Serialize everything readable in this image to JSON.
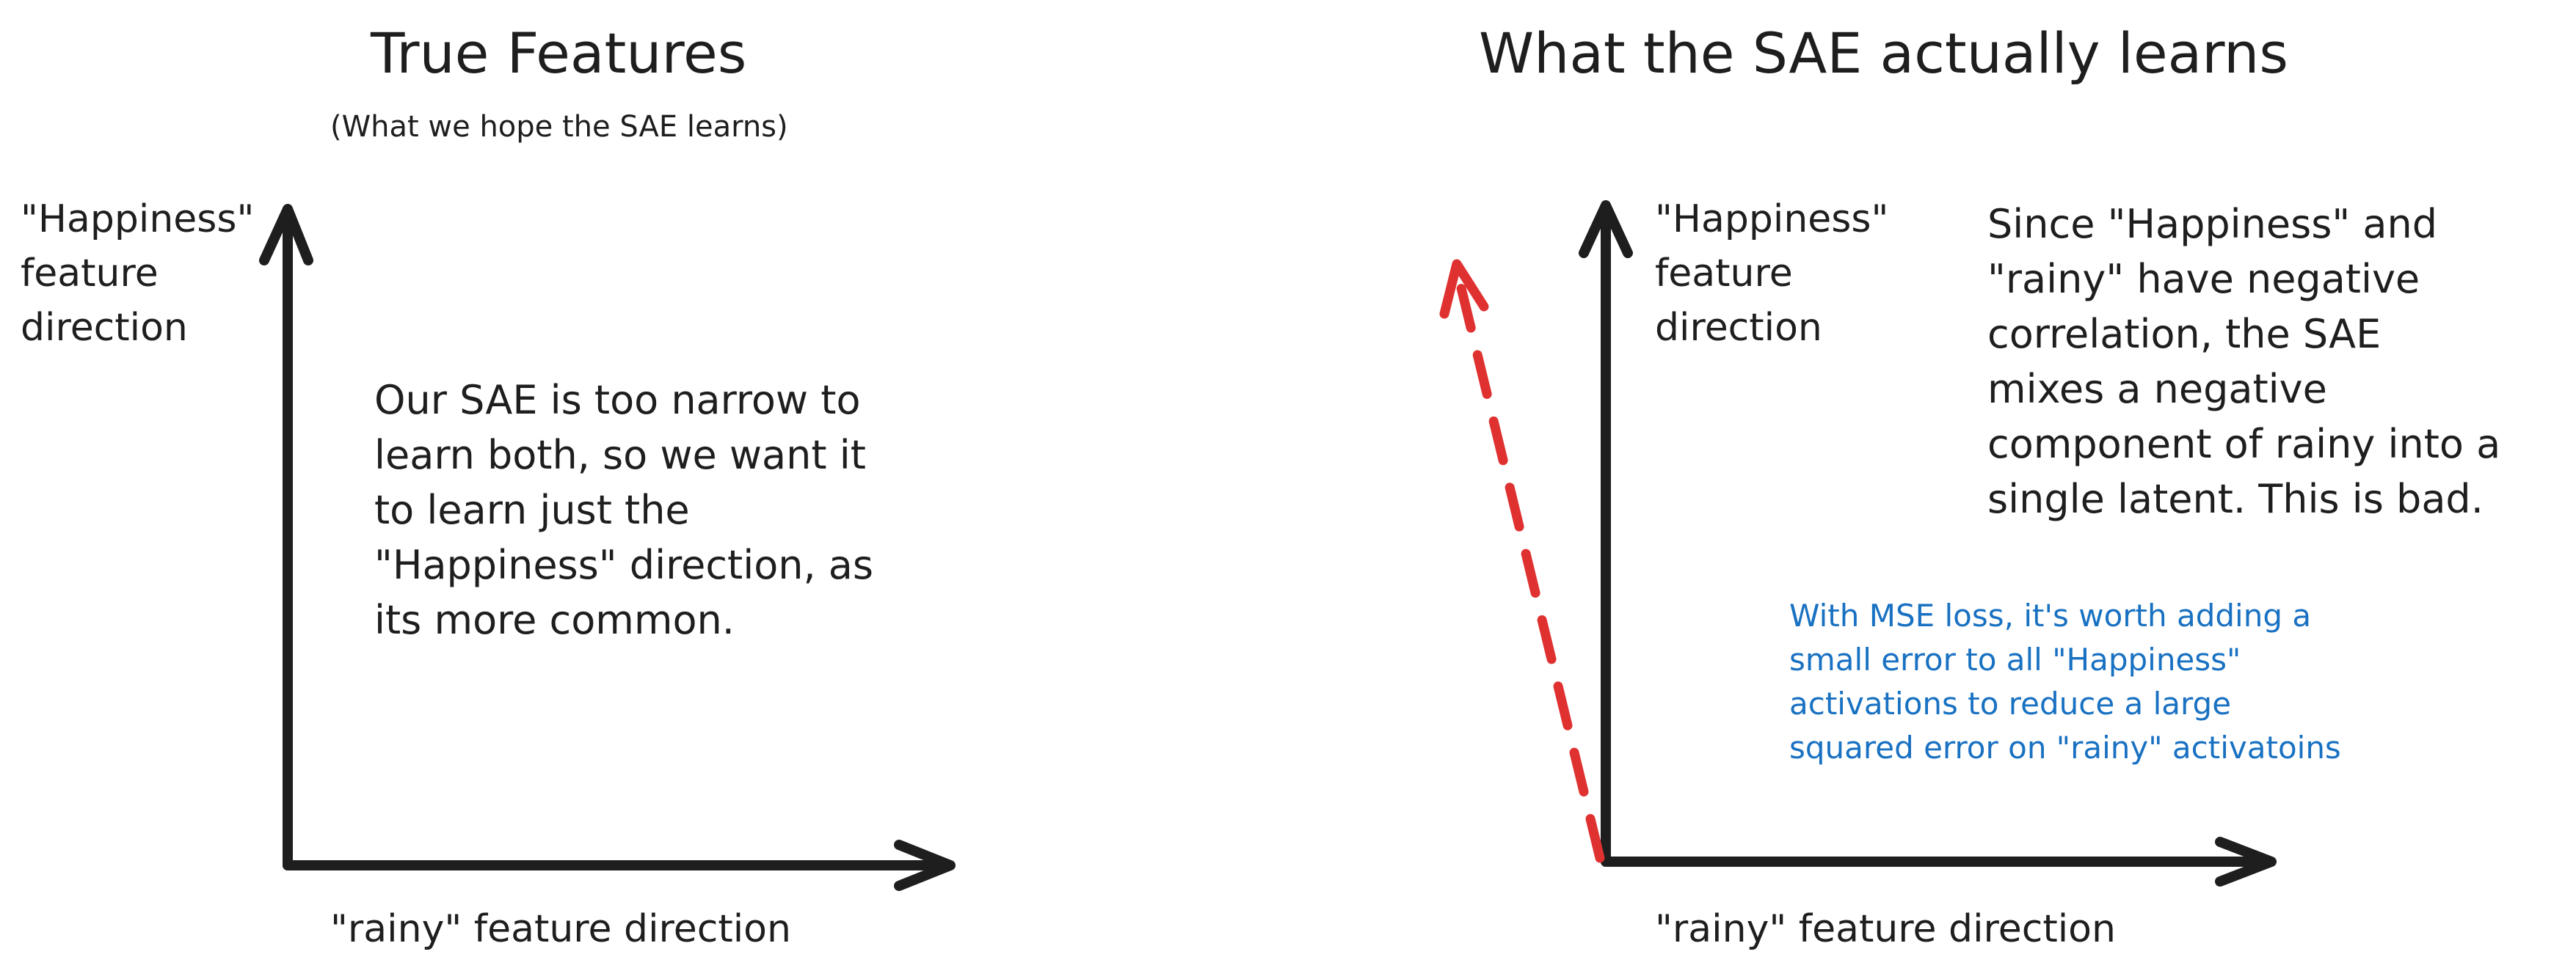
{
  "left_panel": {
    "title": "True Features",
    "subtitle": "(What we hope the SAE learns)",
    "y_axis_label_lines": [
      "\"Happiness\"",
      "feature",
      "direction"
    ],
    "x_axis_label": "\"rainy\" feature direction",
    "body_lines": [
      "Our SAE is too narrow to",
      "learn both, so we want it",
      "to learn just the",
      "\"Happiness\" direction, as",
      "its more common."
    ]
  },
  "right_panel": {
    "title": "What the SAE actually learns",
    "y_axis_label_lines": [
      "\"Happiness\"",
      "feature",
      "direction"
    ],
    "x_axis_label": "\"rainy\" feature direction",
    "body_lines": [
      "Since \"Happiness\" and",
      "\"rainy\" have negative",
      "correlation, the SAE",
      "mixes a negative",
      "component of rainy into a",
      "single latent. This is bad."
    ],
    "note_lines": [
      "With MSE loss, it's worth adding a",
      "small error to all \"Happiness\"",
      "activations to reduce a large",
      "squared error on \"rainy\" activatoins"
    ]
  },
  "colors": {
    "axis": "#1e1e1e",
    "learned_vector": "#e03131",
    "note": "#1971c2"
  }
}
